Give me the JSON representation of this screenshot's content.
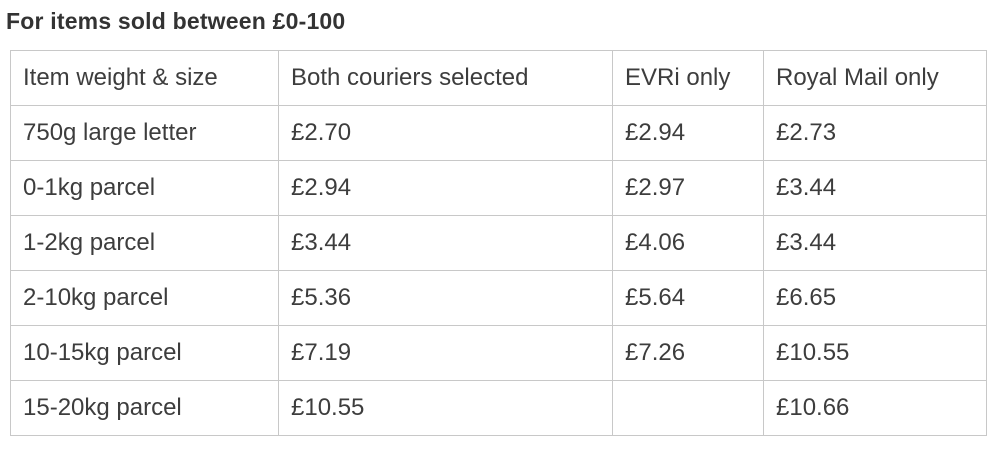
{
  "page": {
    "title": "For items sold between £0-100"
  },
  "colors": {
    "text": "#3d3d3d",
    "title_text": "#333333",
    "border": "#c8c8c8",
    "background": "#ffffff"
  },
  "chart_data": {
    "type": "table",
    "title": "For items sold between £0-100",
    "columns": [
      "Item weight & size",
      "Both couriers selected",
      "EVRi only",
      "Royal Mail only"
    ],
    "rows": [
      [
        "750g large letter",
        "£2.70",
        "£2.94",
        "£2.73"
      ],
      [
        "0-1kg parcel",
        "£2.94",
        "£2.97",
        "£3.44"
      ],
      [
        "1-2kg parcel",
        "£3.44",
        "£4.06",
        "£3.44"
      ],
      [
        "2-10kg parcel",
        "£5.36",
        "£5.64",
        "£6.65"
      ],
      [
        "10-15kg parcel",
        "£7.19",
        "£7.26",
        "£10.55"
      ],
      [
        "15-20kg parcel",
        "£10.55",
        "",
        "£10.66"
      ]
    ]
  }
}
